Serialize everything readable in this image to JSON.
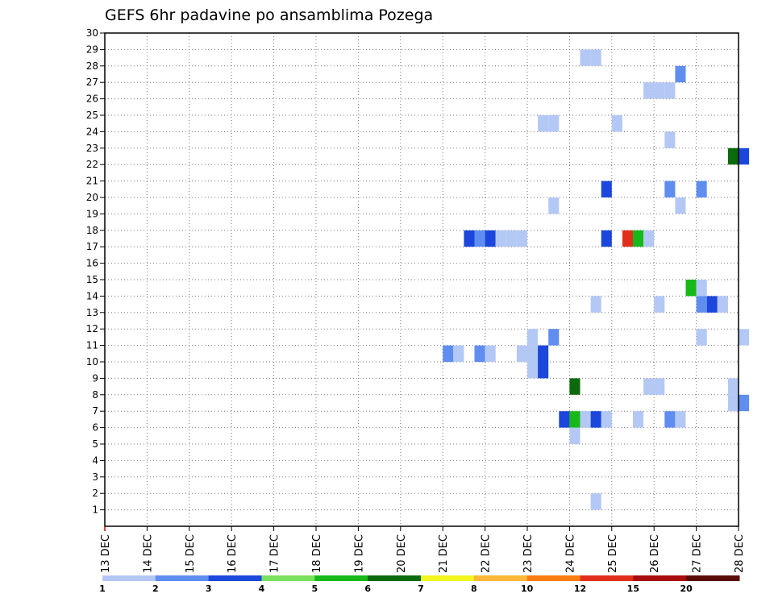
{
  "chart_data": {
    "type": "heatmap",
    "title": "GEFS 6hr padavine po ansamblima Pozega",
    "xlabel": "",
    "ylabel": "",
    "x_ticks": [
      "13 DEC",
      "14 DEC",
      "15 DEC",
      "16 DEC",
      "17 DEC",
      "18 DEC",
      "19 DEC",
      "20 DEC",
      "21 DEC",
      "22 DEC",
      "23 DEC",
      "24 DEC",
      "25 DEC",
      "26 DEC",
      "27 DEC",
      "28 DEC"
    ],
    "xlim": [
      0,
      15
    ],
    "y_ticks": [
      1,
      2,
      3,
      4,
      5,
      6,
      7,
      8,
      9,
      10,
      11,
      12,
      13,
      14,
      15,
      16,
      17,
      18,
      19,
      20,
      21,
      22,
      23,
      24,
      25,
      26,
      27,
      28,
      29,
      30
    ],
    "ylim": [
      0,
      30
    ],
    "grid": true,
    "legend": {
      "placement": "bottom",
      "colors": [
        "#b4c8f6",
        "#5f8ef0",
        "#1c47dc",
        "#7ae060",
        "#17b81a",
        "#0b6a0b",
        "#f4f51c",
        "#fcb83a",
        "#fa7d12",
        "#e0301c",
        "#a80c0c",
        "#5c0a0a"
      ],
      "labels": [
        "1",
        "2",
        "3",
        "4",
        "5",
        "6",
        "7",
        "8",
        "10",
        "12",
        "15",
        "20"
      ]
    },
    "cell_width_days": 0.25,
    "cells": [
      {
        "day": 11.25,
        "member": 29,
        "level": 1
      },
      {
        "day": 11.5,
        "member": 29,
        "level": 1
      },
      {
        "day": 13.5,
        "member": 28,
        "level": 2
      },
      {
        "day": 12.75,
        "member": 27,
        "level": 1
      },
      {
        "day": 13.0,
        "member": 27,
        "level": 1
      },
      {
        "day": 13.25,
        "member": 27,
        "level": 1
      },
      {
        "day": 10.25,
        "member": 25,
        "level": 1
      },
      {
        "day": 10.5,
        "member": 25,
        "level": 1
      },
      {
        "day": 12.0,
        "member": 25,
        "level": 1
      },
      {
        "day": 13.25,
        "member": 24,
        "level": 1
      },
      {
        "day": 14.75,
        "member": 23,
        "level": 6
      },
      {
        "day": 15.0,
        "member": 23,
        "level": 3
      },
      {
        "day": 11.75,
        "member": 21,
        "level": 3
      },
      {
        "day": 13.25,
        "member": 21,
        "level": 2
      },
      {
        "day": 14.0,
        "member": 21,
        "level": 2
      },
      {
        "day": 10.5,
        "member": 20,
        "level": 1
      },
      {
        "day": 13.5,
        "member": 20,
        "level": 1
      },
      {
        "day": 8.5,
        "member": 18,
        "level": 3
      },
      {
        "day": 8.75,
        "member": 18,
        "level": 2
      },
      {
        "day": 9.0,
        "member": 18,
        "level": 3
      },
      {
        "day": 9.25,
        "member": 18,
        "level": 1
      },
      {
        "day": 9.5,
        "member": 18,
        "level": 1
      },
      {
        "day": 9.75,
        "member": 18,
        "level": 1
      },
      {
        "day": 11.75,
        "member": 18,
        "level": 3
      },
      {
        "day": 12.25,
        "member": 18,
        "level": 10
      },
      {
        "day": 12.5,
        "member": 18,
        "level": 5
      },
      {
        "day": 12.75,
        "member": 18,
        "level": 1
      },
      {
        "day": 13.75,
        "member": 15,
        "level": 5
      },
      {
        "day": 14.0,
        "member": 15,
        "level": 1
      },
      {
        "day": 11.5,
        "member": 14,
        "level": 1
      },
      {
        "day": 13.0,
        "member": 14,
        "level": 1
      },
      {
        "day": 14.0,
        "member": 14,
        "level": 2
      },
      {
        "day": 14.25,
        "member": 14,
        "level": 3
      },
      {
        "day": 14.5,
        "member": 14,
        "level": 1
      },
      {
        "day": 10.0,
        "member": 12,
        "level": 1
      },
      {
        "day": 10.5,
        "member": 12,
        "level": 2
      },
      {
        "day": 14.0,
        "member": 12,
        "level": 1
      },
      {
        "day": 15.0,
        "member": 12,
        "level": 1
      },
      {
        "day": 8.0,
        "member": 11,
        "level": 2
      },
      {
        "day": 8.25,
        "member": 11,
        "level": 1
      },
      {
        "day": 8.75,
        "member": 11,
        "level": 2
      },
      {
        "day": 9.0,
        "member": 11,
        "level": 1
      },
      {
        "day": 9.75,
        "member": 11,
        "level": 1
      },
      {
        "day": 10.0,
        "member": 11,
        "level": 1
      },
      {
        "day": 10.25,
        "member": 11,
        "level": 3
      },
      {
        "day": 10.0,
        "member": 10,
        "level": 1
      },
      {
        "day": 10.25,
        "member": 10,
        "level": 3
      },
      {
        "day": 11.0,
        "member": 9,
        "level": 6
      },
      {
        "day": 12.75,
        "member": 9,
        "level": 1
      },
      {
        "day": 13.0,
        "member": 9,
        "level": 1
      },
      {
        "day": 14.75,
        "member": 9,
        "level": 1
      },
      {
        "day": 14.75,
        "member": 8,
        "level": 1
      },
      {
        "day": 15.0,
        "member": 8,
        "level": 2
      },
      {
        "day": 10.75,
        "member": 7,
        "level": 3
      },
      {
        "day": 11.0,
        "member": 7,
        "level": 5
      },
      {
        "day": 11.25,
        "member": 7,
        "level": 1
      },
      {
        "day": 11.5,
        "member": 7,
        "level": 3
      },
      {
        "day": 11.75,
        "member": 7,
        "level": 1
      },
      {
        "day": 12.5,
        "member": 7,
        "level": 1
      },
      {
        "day": 13.25,
        "member": 7,
        "level": 2
      },
      {
        "day": 13.5,
        "member": 7,
        "level": 1
      },
      {
        "day": 11.0,
        "member": 6,
        "level": 1
      },
      {
        "day": 11.5,
        "member": 2,
        "level": 1
      }
    ]
  }
}
